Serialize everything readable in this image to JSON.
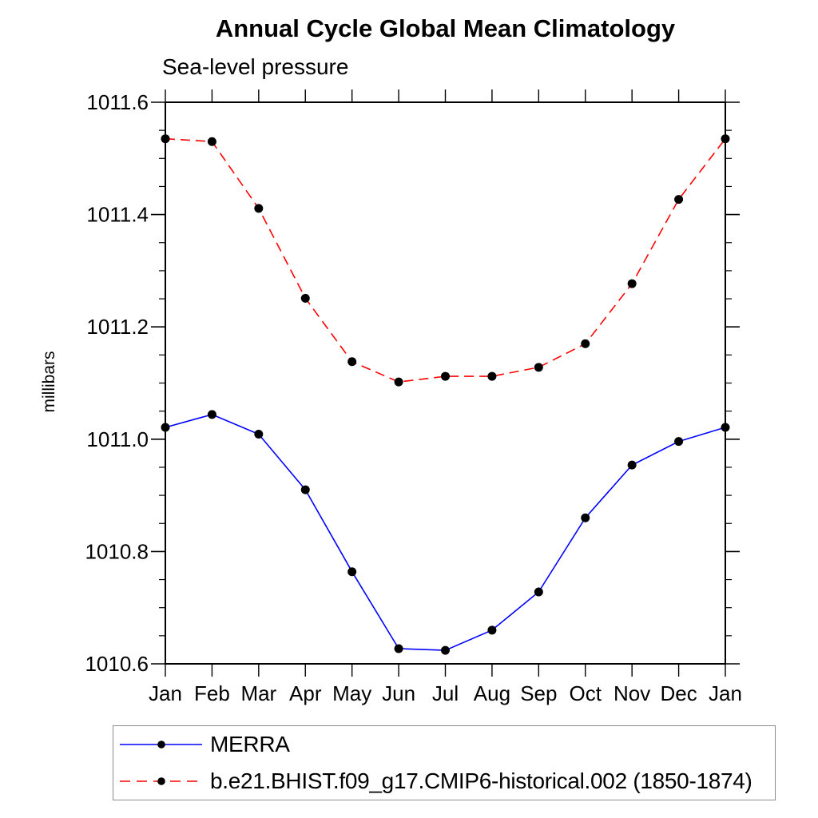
{
  "chart_data": {
    "type": "line",
    "title": "Annual Cycle Global Mean Climatology",
    "subtitle": "Sea-level pressure",
    "ylabel": "millibars",
    "xlabel": "",
    "ylim": [
      1010.6,
      1011.6
    ],
    "y_major_step": 0.2,
    "y_minor_step": 0.05,
    "y_tick_labels": [
      "1010.6",
      "1010.8",
      "1011.0",
      "1011.2",
      "1011.4",
      "1011.6"
    ],
    "x_tick_labels": [
      "Jan",
      "Feb",
      "Mar",
      "Apr",
      "May",
      "Jun",
      "Jul",
      "Aug",
      "Sep",
      "Oct",
      "Nov",
      "Dec",
      "Jan"
    ],
    "grid": false,
    "legend_position": "bottom-left",
    "frame_color": "#000000",
    "marker_color": "#000000",
    "series": [
      {
        "name": "MERRA",
        "line_color": "#0000ff",
        "line_style": "solid",
        "marker": "filled-circle",
        "values": [
          1011.021,
          1011.044,
          1011.009,
          1010.91,
          1010.764,
          1010.627,
          1010.624,
          1010.66,
          1010.728,
          1010.86,
          1010.954,
          1010.996,
          1011.021
        ]
      },
      {
        "name": "b.e21.BHIST.f09_g17.CMIP6-historical.002 (1850-1874)",
        "line_color": "#ff0000",
        "line_style": "dashed",
        "marker": "filled-circle",
        "values": [
          1011.535,
          1011.53,
          1011.411,
          1011.251,
          1011.138,
          1011.102,
          1011.112,
          1011.112,
          1011.128,
          1011.17,
          1011.277,
          1011.427,
          1011.535
        ]
      }
    ]
  }
}
